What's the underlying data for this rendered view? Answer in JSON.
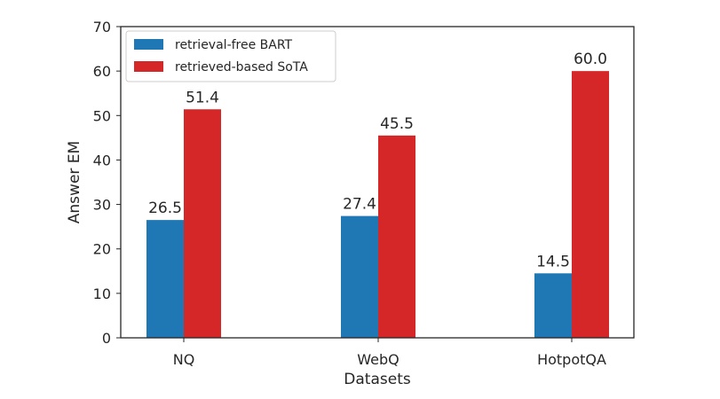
{
  "chart_data": {
    "type": "bar",
    "title": "",
    "xlabel": "Datasets",
    "ylabel": "Answer EM",
    "ylim": [
      0,
      70
    ],
    "yticks": [
      "0",
      "10",
      "20",
      "30",
      "40",
      "50",
      "60",
      "70"
    ],
    "categories": [
      "NQ",
      "WebQ",
      "HotpotQA"
    ],
    "series": [
      {
        "name": "retrieval-free BART",
        "color": "#1f77b4",
        "values": [
          26.5,
          27.4,
          14.5
        ],
        "labels": [
          "26.5",
          "27.4",
          "14.5"
        ]
      },
      {
        "name": "retrieved-based SoTA",
        "color": "#d62728",
        "values": [
          51.4,
          45.5,
          60.0
        ],
        "labels": [
          "51.4",
          "45.5",
          "60.0"
        ]
      }
    ],
    "legend": "top-left",
    "grid": false
  }
}
